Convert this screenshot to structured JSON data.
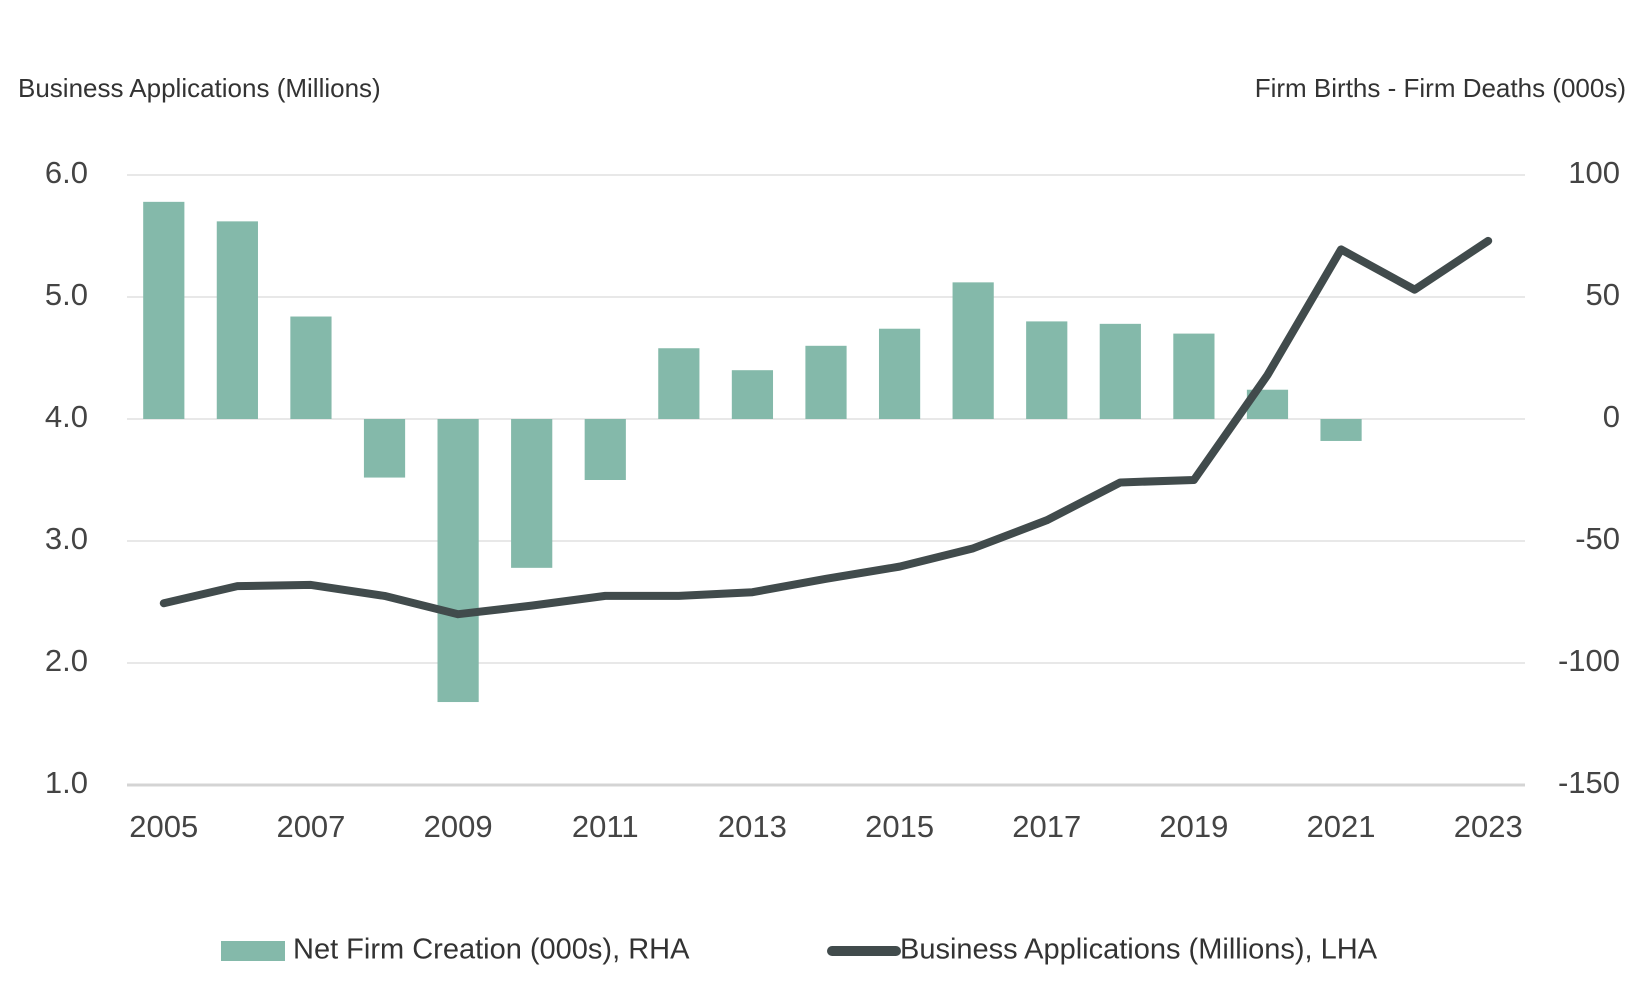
{
  "chart_data": {
    "type": "bar_line",
    "y_label": "Business Applications (Millions)",
    "y2_label": "Firm Births - Firm Deaths (000s)",
    "x": [
      2005,
      2006,
      2007,
      2008,
      2009,
      2010,
      2011,
      2012,
      2013,
      2014,
      2015,
      2016,
      2017,
      2018,
      2019,
      2020,
      2021,
      2022,
      2023
    ],
    "xlim": [
      2004.5,
      2023.5
    ],
    "xticks": [
      2005,
      2007,
      2009,
      2011,
      2013,
      2015,
      2017,
      2019,
      2021,
      2023
    ],
    "ylim": [
      1,
      6
    ],
    "yticks": [
      {
        "value": 1,
        "label": "1.0"
      },
      {
        "value": 2,
        "label": "2.0"
      },
      {
        "value": 3,
        "label": "3.0"
      },
      {
        "value": 4,
        "label": "4.0"
      },
      {
        "value": 5,
        "label": "5.0"
      },
      {
        "value": 6,
        "label": "6.0"
      }
    ],
    "y2lim": [
      -150,
      100
    ],
    "y2ticks": [
      -150,
      -100,
      -50,
      0,
      50,
      100
    ],
    "grid": true,
    "series": [
      {
        "name": "Net Firm Creation (000s), RHA",
        "type": "bar",
        "axis": "y2",
        "color": "#84b9aa",
        "values": [
          89,
          81,
          42,
          -24,
          -116,
          -61,
          -25,
          29,
          20,
          30,
          37,
          56,
          40,
          39,
          35,
          12,
          -9,
          null,
          null
        ]
      },
      {
        "name": "Business Applications (Millions), LHA",
        "type": "line",
        "color": "#414b4c",
        "values": [
          2.49,
          2.63,
          2.64,
          2.55,
          2.4,
          2.47,
          2.55,
          2.55,
          2.58,
          2.69,
          2.79,
          2.94,
          3.17,
          3.48,
          3.5,
          4.36,
          5.39,
          5.06,
          5.46
        ]
      }
    ]
  }
}
